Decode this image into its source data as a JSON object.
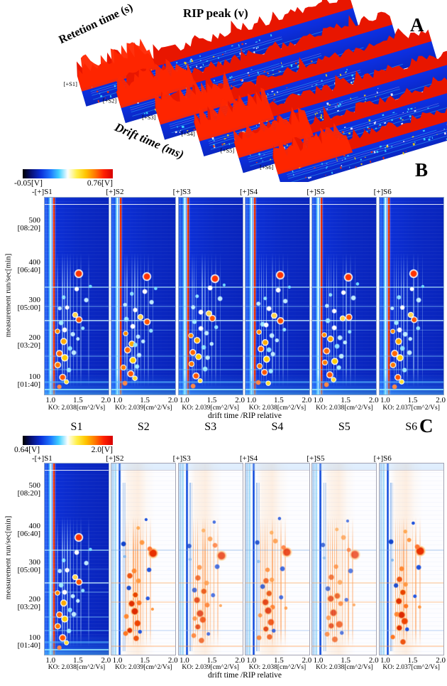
{
  "figure": {
    "panel_a": {
      "letter": "A",
      "rip_peak_label": "RIP peak (v)",
      "retention_label": "Retetion time (s)",
      "drift_label": "Drift time (ms)",
      "strip_labels": [
        "[+S1]",
        "[+S2]",
        "[+S3]",
        "[+S4]",
        "[+S5]",
        "[+S6]"
      ]
    },
    "panel_b": {
      "letter": "B",
      "colorbar": {
        "min": "-0.05[V]",
        "max": "0.76[V]"
      },
      "y_axis_label": "measurement run/sec[min]",
      "y_ticks": [
        [
          "500",
          "[08:20]"
        ],
        [
          "400",
          "[06:40]"
        ],
        [
          "300",
          "[05:00]"
        ],
        [
          "200",
          "[03:20]"
        ],
        [
          "100",
          "[01:40]"
        ]
      ],
      "x_ticks": [
        "1.0",
        "1.5",
        "2.0"
      ],
      "x_axis_label": "drift time /RIP relative",
      "headers": [
        "-[+]S1",
        "[+]S2",
        "[+]S3",
        "[+]S4",
        "[+]S5",
        "[+]S6"
      ],
      "k0_labels": [
        "KO: 2.038[cm^2/Vs]",
        "KO: 2.039[cm^2/Vs]",
        "KO: 2.039[cm^2/Vs]",
        "KO: 2.038[cm^2/Vs]",
        "KO: 2.038[cm^2/Vs]",
        "KO: 2.037[cm^2/Vs]"
      ]
    },
    "sample_labels": [
      "S1",
      "S2",
      "S3",
      "S4",
      "S5",
      "S6"
    ],
    "panel_c": {
      "letter": "C",
      "colorbar": {
        "min": "0.64[V]",
        "max": "2.0[V]"
      },
      "y_axis_label": "measurement run/sec[min]",
      "y_ticks": [
        [
          "500",
          "[08:20]"
        ],
        [
          "400",
          "[06:40]"
        ],
        [
          "300",
          "[05:00]"
        ],
        [
          "200",
          "[03:20]"
        ],
        [
          "100",
          "[01:40]"
        ]
      ],
      "x_ticks": [
        "1.0",
        "1.5",
        "2.0"
      ],
      "x_axis_label": "drift time /RIP relative",
      "headers": [
        "-[+]S1",
        "[+]S2",
        "[+]S3",
        "[+]S4",
        "[+]S5",
        "[+]S6"
      ],
      "k0_labels": [
        "KO: 2.038[cm^2/Vs]",
        "KO: 2.039[cm^2/Vs]",
        "KO: 2.039[cm^2/Vs]",
        "KO: 2.038[cm^2/Vs]",
        "KO: 2.038[cm^2/Vs]",
        "KO: 2.037[cm^2/Vs]"
      ]
    }
  },
  "chart_data": [
    {
      "type": "heatmap",
      "title": "Panel A: 3D GC-IMS spectra (six samples, waterfall view)",
      "axes": [
        "RIP peak (v)",
        "Retetion time (s)",
        "Drift time (ms)"
      ],
      "series": [
        "[+S1]",
        "[+S2]",
        "[+S3]",
        "[+S4]",
        "[+S5]",
        "[+S6]"
      ]
    },
    {
      "type": "heatmap",
      "title": "Panel B: topographic plots S1-S6",
      "xlabel": "drift time /RIP relative",
      "ylabel": "measurement run/sec[min]",
      "x_ticks": [
        1.0,
        1.5,
        2.0
      ],
      "y_ticks_sec": [
        500,
        400,
        300,
        200,
        100
      ],
      "y_ticks_min": [
        "[08:20]",
        "[06:40]",
        "[05:00]",
        "[03:20]",
        "[01:40]"
      ],
      "color_scale": {
        "min": "-0.05[V]",
        "max": "0.76[V]"
      },
      "k0_cm2_Vs": [
        2.038,
        2.039,
        2.039,
        2.038,
        2.038,
        2.037
      ]
    },
    {
      "type": "heatmap",
      "title": "Panel C: difference plots vs S1 reference",
      "xlabel": "drift time /RIP relative",
      "ylabel": "measurement run/sec[min]",
      "x_ticks": [
        1.0,
        1.5,
        2.0
      ],
      "y_ticks_sec": [
        500,
        400,
        300,
        200,
        100
      ],
      "y_ticks_min": [
        "[08:20]",
        "[06:40]",
        "[05:00]",
        "[03:20]",
        "[01:40]"
      ],
      "color_scale": {
        "min": "0.64[V]",
        "max": "2.0[V]"
      },
      "k0_cm2_Vs": [
        2.038,
        2.039,
        2.039,
        2.038,
        2.038,
        2.037
      ]
    }
  ],
  "pattern": {
    "blue_spots": [
      [
        55,
        40,
        5,
        "#ff3300",
        "#ffffff"
      ],
      [
        50,
        47,
        3,
        "#ffffff",
        null
      ],
      [
        63,
        52,
        3,
        "#bfeaff",
        null
      ],
      [
        30,
        50,
        2.5,
        "#8fe0ff",
        null
      ],
      [
        22,
        55,
        2.5,
        "#bfeaff",
        null
      ],
      [
        36,
        57,
        3,
        "#ffffff",
        null
      ],
      [
        47,
        60,
        3.5,
        "#ffd24a",
        "#ffffff"
      ],
      [
        55,
        62,
        4,
        "#ff5500",
        "#ffffff"
      ],
      [
        25,
        63,
        3,
        "#9fe8ff",
        null
      ],
      [
        33,
        66,
        3,
        "#ffffff",
        null
      ],
      [
        20,
        69,
        3,
        "#ff8800",
        "#e8ffff"
      ],
      [
        42,
        70,
        3,
        "#bfeaff",
        null
      ],
      [
        30,
        73,
        4,
        "#ffaa00",
        "#ffffff"
      ],
      [
        38,
        76,
        3,
        "#8fe0ff",
        null
      ],
      [
        24,
        78,
        4,
        "#ff6600",
        "#ffffff"
      ],
      [
        45,
        80,
        3,
        "#bfeaff",
        null
      ],
      [
        33,
        82,
        4,
        "#ffcc00",
        "#ffffff"
      ],
      [
        20,
        85,
        3.5,
        "#ff7700",
        "#e8ffff"
      ],
      [
        40,
        87,
        3,
        "#9fe8ff",
        null
      ],
      [
        28,
        90,
        4,
        "#ff5500",
        "#ffffff"
      ],
      [
        50,
        73,
        2.5,
        "#bfeaff",
        null
      ],
      [
        60,
        67,
        2.5,
        "#8fe0ff",
        null
      ],
      [
        70,
        45,
        2,
        "#6fd8ff",
        null
      ],
      [
        35,
        93,
        3,
        "#ffdd33",
        "#ffffff"
      ],
      [
        22,
        95,
        3,
        "#ff8844",
        null
      ]
    ],
    "white_spots": [
      [
        65,
        47,
        6,
        "#e83000",
        "#ffd9a0"
      ],
      [
        58,
        44,
        3,
        "#ff7733",
        null
      ],
      [
        48,
        40,
        3,
        "#ff9944",
        null
      ],
      [
        40,
        35,
        2.5,
        "#ffaa55",
        null
      ],
      [
        55,
        30,
        2,
        "#2255dd",
        null
      ],
      [
        18,
        42,
        3,
        "#1144cc",
        null
      ],
      [
        60,
        55,
        3,
        "#2255dd",
        null
      ],
      [
        35,
        55,
        3,
        "#ff8833",
        null
      ],
      [
        30,
        60,
        3.5,
        "#ee5511",
        null
      ],
      [
        42,
        62,
        3,
        "#ff9944",
        null
      ],
      [
        25,
        65,
        3,
        "#1f4fd0",
        null
      ],
      [
        38,
        68,
        4,
        "#e84400",
        "#ffd9a0"
      ],
      [
        30,
        72,
        4.5,
        "#e03000",
        "#ffd9a0"
      ],
      [
        44,
        74,
        3,
        "#ff7722",
        null
      ],
      [
        35,
        78,
        5,
        "#dd2a00",
        "#ffd9a0"
      ],
      [
        25,
        80,
        3,
        "#ff8833",
        null
      ],
      [
        40,
        83,
        4,
        "#ee4400",
        null
      ],
      [
        30,
        86,
        4,
        "#e03000",
        "#ffd9a0"
      ],
      [
        22,
        90,
        3,
        "#ff7722",
        null
      ],
      [
        36,
        92,
        3.5,
        "#ee5511",
        null
      ],
      [
        45,
        88,
        2.5,
        "#2255dd",
        null
      ],
      [
        55,
        70,
        2.5,
        "#2a5ae0",
        null
      ],
      [
        65,
        75,
        2,
        "#ff9944",
        null
      ],
      [
        20,
        50,
        2,
        "#88bbee",
        null
      ]
    ],
    "blue_streaks": [
      [
        21,
        0.35
      ],
      [
        25,
        0.5
      ],
      [
        29,
        0.35
      ],
      [
        34,
        0.55
      ],
      [
        39,
        0.4
      ],
      [
        45,
        0.35
      ],
      [
        51,
        0.45
      ],
      [
        58,
        0.3
      ],
      [
        66,
        0.25
      ]
    ],
    "white_streaks": [
      [
        23,
        0.5
      ],
      [
        27,
        0.35
      ],
      [
        31,
        0.55
      ],
      [
        35,
        0.4
      ],
      [
        39,
        0.5
      ],
      [
        44,
        0.35
      ],
      [
        49,
        0.3
      ],
      [
        55,
        0.45
      ],
      [
        62,
        0.3
      ]
    ],
    "white_blue_streaks": [
      [
        17,
        0.55
      ],
      [
        20,
        0.3
      ]
    ],
    "blue_hbands": [
      [
        45,
        2,
        "rgba(190,245,255,0.55)"
      ],
      [
        55,
        1.5,
        "rgba(160,225,255,0.3)"
      ],
      [
        62,
        2,
        "rgba(210,250,255,0.65)"
      ],
      [
        67,
        1.5,
        "rgba(160,225,255,0.3)"
      ],
      [
        80,
        2,
        "rgba(140,215,255,0.35)"
      ],
      [
        87,
        2,
        "rgba(120,205,255,0.4)"
      ],
      [
        93,
        3,
        "rgba(90,190,255,0.5)"
      ],
      [
        97,
        2,
        "rgba(150,235,255,0.8)"
      ]
    ],
    "white_hbands": [
      [
        45,
        2,
        "rgba(120,170,230,0.3)"
      ],
      [
        62,
        2,
        "rgba(255,170,90,0.35)"
      ],
      [
        72,
        2,
        "rgba(255,160,80,0.3)"
      ],
      [
        87,
        2,
        "rgba(150,190,240,0.3)"
      ],
      [
        95,
        2,
        "rgba(255,150,70,0.35)"
      ]
    ]
  }
}
